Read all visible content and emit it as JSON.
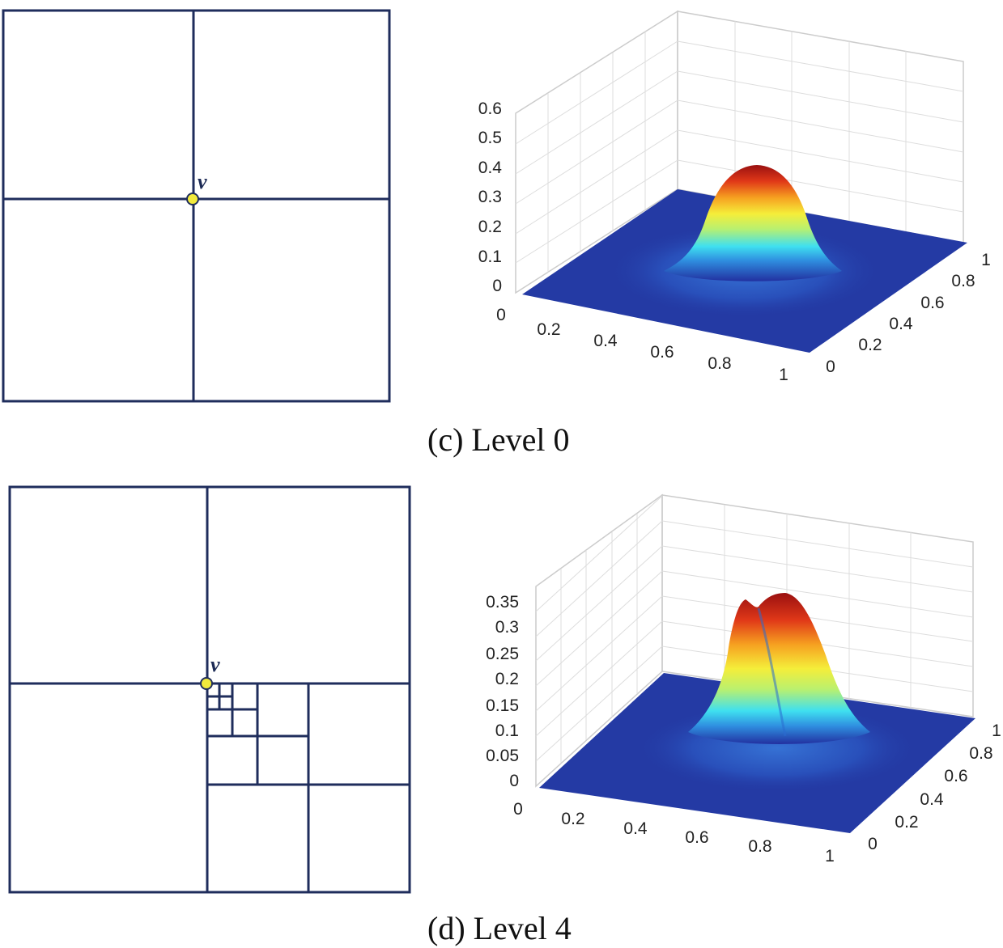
{
  "panels": [
    {
      "caption": "(c) Level 0",
      "vertex_label": "v",
      "grid_color": "#1f2d5c",
      "vertex_color": "#f2ea3c",
      "chart_data": {
        "type": "surface",
        "title": "",
        "x_ticks": [
          "0",
          "0.2",
          "0.4",
          "0.6",
          "0.8",
          "1"
        ],
        "y_ticks": [
          "0",
          "0.2",
          "0.4",
          "0.6",
          "0.8",
          "1"
        ],
        "z_ticks": [
          "0",
          "0.1",
          "0.2",
          "0.3",
          "0.4",
          "0.5",
          "0.6"
        ],
        "xlim": [
          0,
          1
        ],
        "ylim": [
          0,
          1
        ],
        "zlim": [
          0,
          0.6
        ],
        "peaks": [
          {
            "x": 0.5,
            "y": 0.5,
            "height": 0.45
          }
        ],
        "colormap": "jet",
        "grid": true
      }
    },
    {
      "caption": "(d) Level 4",
      "vertex_label": "v",
      "grid_color": "#1f2d5c",
      "vertex_color": "#f2ea3c",
      "chart_data": {
        "type": "surface",
        "title": "",
        "x_ticks": [
          "0",
          "0.2",
          "0.4",
          "0.6",
          "0.8",
          "1"
        ],
        "y_ticks": [
          "0",
          "0.2",
          "0.4",
          "0.6",
          "0.8",
          "1"
        ],
        "z_ticks": [
          "0",
          "0.05",
          "0.1",
          "0.15",
          "0.2",
          "0.25",
          "0.3",
          "0.35"
        ],
        "xlim": [
          0,
          1
        ],
        "ylim": [
          0,
          1
        ],
        "zlim": [
          0,
          0.35
        ],
        "peaks": [
          {
            "x": 0.47,
            "y": 0.55,
            "height": 0.35
          },
          {
            "x": 0.6,
            "y": 0.55,
            "height": 0.36
          }
        ],
        "colormap": "jet",
        "grid": true
      }
    }
  ]
}
